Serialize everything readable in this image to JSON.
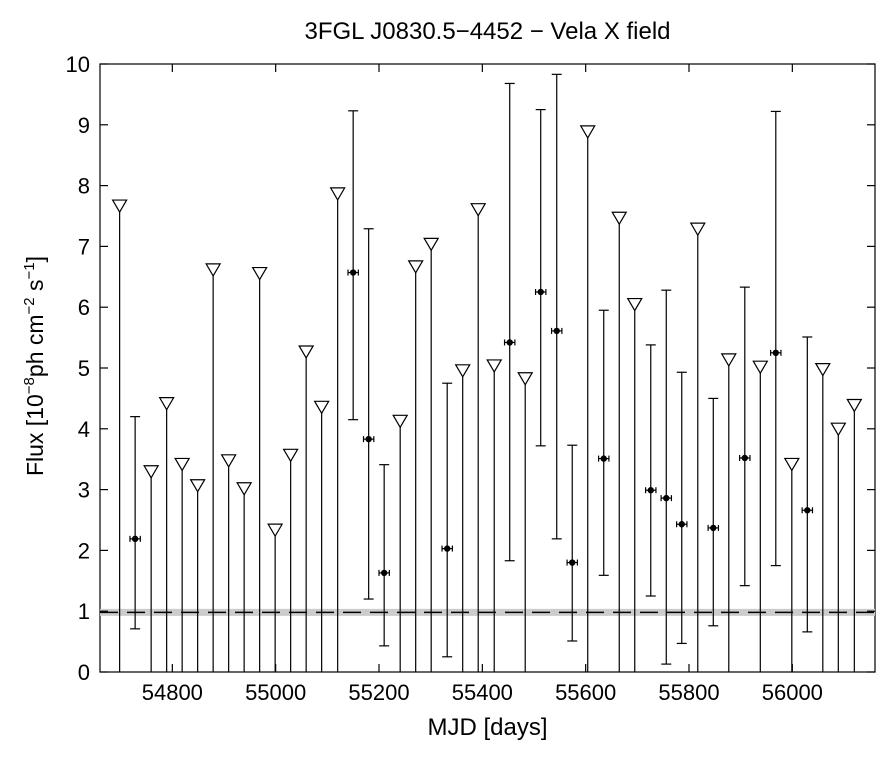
{
  "chart_data": {
    "type": "scatter",
    "title": "3FGL J0830.5−4452 − Vela X field",
    "xlabel": "MJD [days]",
    "ylabel": {
      "prefix": "Flux [10",
      "exp1": "−8",
      "mid1": "ph cm",
      "exp2": "−2",
      "mid2": " s",
      "exp3": "−1",
      "suffix": "]"
    },
    "xlim": [
      54660,
      56160
    ],
    "ylim": [
      0,
      10
    ],
    "xticks": [
      54800,
      55000,
      55200,
      55400,
      55600,
      55800,
      56000
    ],
    "yticks": [
      0,
      1,
      2,
      3,
      4,
      5,
      6,
      7,
      8,
      9,
      10
    ],
    "reference_line": {
      "y": 0.98,
      "style": "dashed",
      "band_color": "#cccccc"
    },
    "upper_limits": [
      {
        "x": 54698,
        "y": 7.68
      },
      {
        "x": 54759,
        "y": 3.31
      },
      {
        "x": 54789,
        "y": 4.43
      },
      {
        "x": 54819,
        "y": 3.43
      },
      {
        "x": 54849,
        "y": 3.08
      },
      {
        "x": 54879,
        "y": 6.63
      },
      {
        "x": 54909,
        "y": 3.49
      },
      {
        "x": 54939,
        "y": 3.03
      },
      {
        "x": 54969,
        "y": 6.57
      },
      {
        "x": 54999,
        "y": 2.35
      },
      {
        "x": 55029,
        "y": 3.58
      },
      {
        "x": 55059,
        "y": 5.28
      },
      {
        "x": 55089,
        "y": 4.37
      },
      {
        "x": 55120,
        "y": 7.88
      },
      {
        "x": 55241,
        "y": 4.14
      },
      {
        "x": 55271,
        "y": 6.68
      },
      {
        "x": 55301,
        "y": 7.05
      },
      {
        "x": 55362,
        "y": 4.97
      },
      {
        "x": 55392,
        "y": 7.62
      },
      {
        "x": 55423,
        "y": 5.05
      },
      {
        "x": 55483,
        "y": 4.84
      },
      {
        "x": 55604,
        "y": 8.9
      },
      {
        "x": 55665,
        "y": 7.48
      },
      {
        "x": 55695,
        "y": 6.06
      },
      {
        "x": 55817,
        "y": 7.3
      },
      {
        "x": 55877,
        "y": 5.15
      },
      {
        "x": 55938,
        "y": 5.03
      },
      {
        "x": 55999,
        "y": 3.43
      },
      {
        "x": 56059,
        "y": 4.99
      },
      {
        "x": 56089,
        "y": 4.01
      },
      {
        "x": 56120,
        "y": 4.4
      }
    ],
    "detections": [
      {
        "x": 54728,
        "y": 2.19,
        "yerr_low": 0.71,
        "yerr_high": 4.2
      },
      {
        "x": 55150,
        "y": 6.57,
        "yerr_low": 4.15,
        "yerr_high": 9.23
      },
      {
        "x": 55180,
        "y": 3.83,
        "yerr_low": 1.2,
        "yerr_high": 7.29
      },
      {
        "x": 55210,
        "y": 1.63,
        "yerr_low": 0.43,
        "yerr_high": 3.41
      },
      {
        "x": 55332,
        "y": 2.03,
        "yerr_low": 0.25,
        "yerr_high": 4.75
      },
      {
        "x": 55453,
        "y": 5.42,
        "yerr_low": 1.83,
        "yerr_high": 9.68
      },
      {
        "x": 55513,
        "y": 6.25,
        "yerr_low": 3.72,
        "yerr_high": 9.25
      },
      {
        "x": 55544,
        "y": 5.61,
        "yerr_low": 2.19,
        "yerr_high": 9.83
      },
      {
        "x": 55574,
        "y": 1.8,
        "yerr_low": 0.51,
        "yerr_high": 3.73
      },
      {
        "x": 55635,
        "y": 3.51,
        "yerr_low": 1.59,
        "yerr_high": 5.95
      },
      {
        "x": 55726,
        "y": 2.99,
        "yerr_low": 1.25,
        "yerr_high": 5.38
      },
      {
        "x": 55756,
        "y": 2.86,
        "yerr_low": 0.13,
        "yerr_high": 6.28
      },
      {
        "x": 55786,
        "y": 2.43,
        "yerr_low": 0.47,
        "yerr_high": 4.93
      },
      {
        "x": 55847,
        "y": 2.37,
        "yerr_low": 0.76,
        "yerr_high": 4.5
      },
      {
        "x": 55908,
        "y": 3.52,
        "yerr_low": 1.42,
        "yerr_high": 6.33
      },
      {
        "x": 55968,
        "y": 5.25,
        "yerr_low": 1.75,
        "yerr_high": 9.22
      },
      {
        "x": 56029,
        "y": 2.66,
        "yerr_low": 0.66,
        "yerr_high": 5.51
      }
    ],
    "bin_half_width": 10,
    "grid": false,
    "legend": false
  }
}
